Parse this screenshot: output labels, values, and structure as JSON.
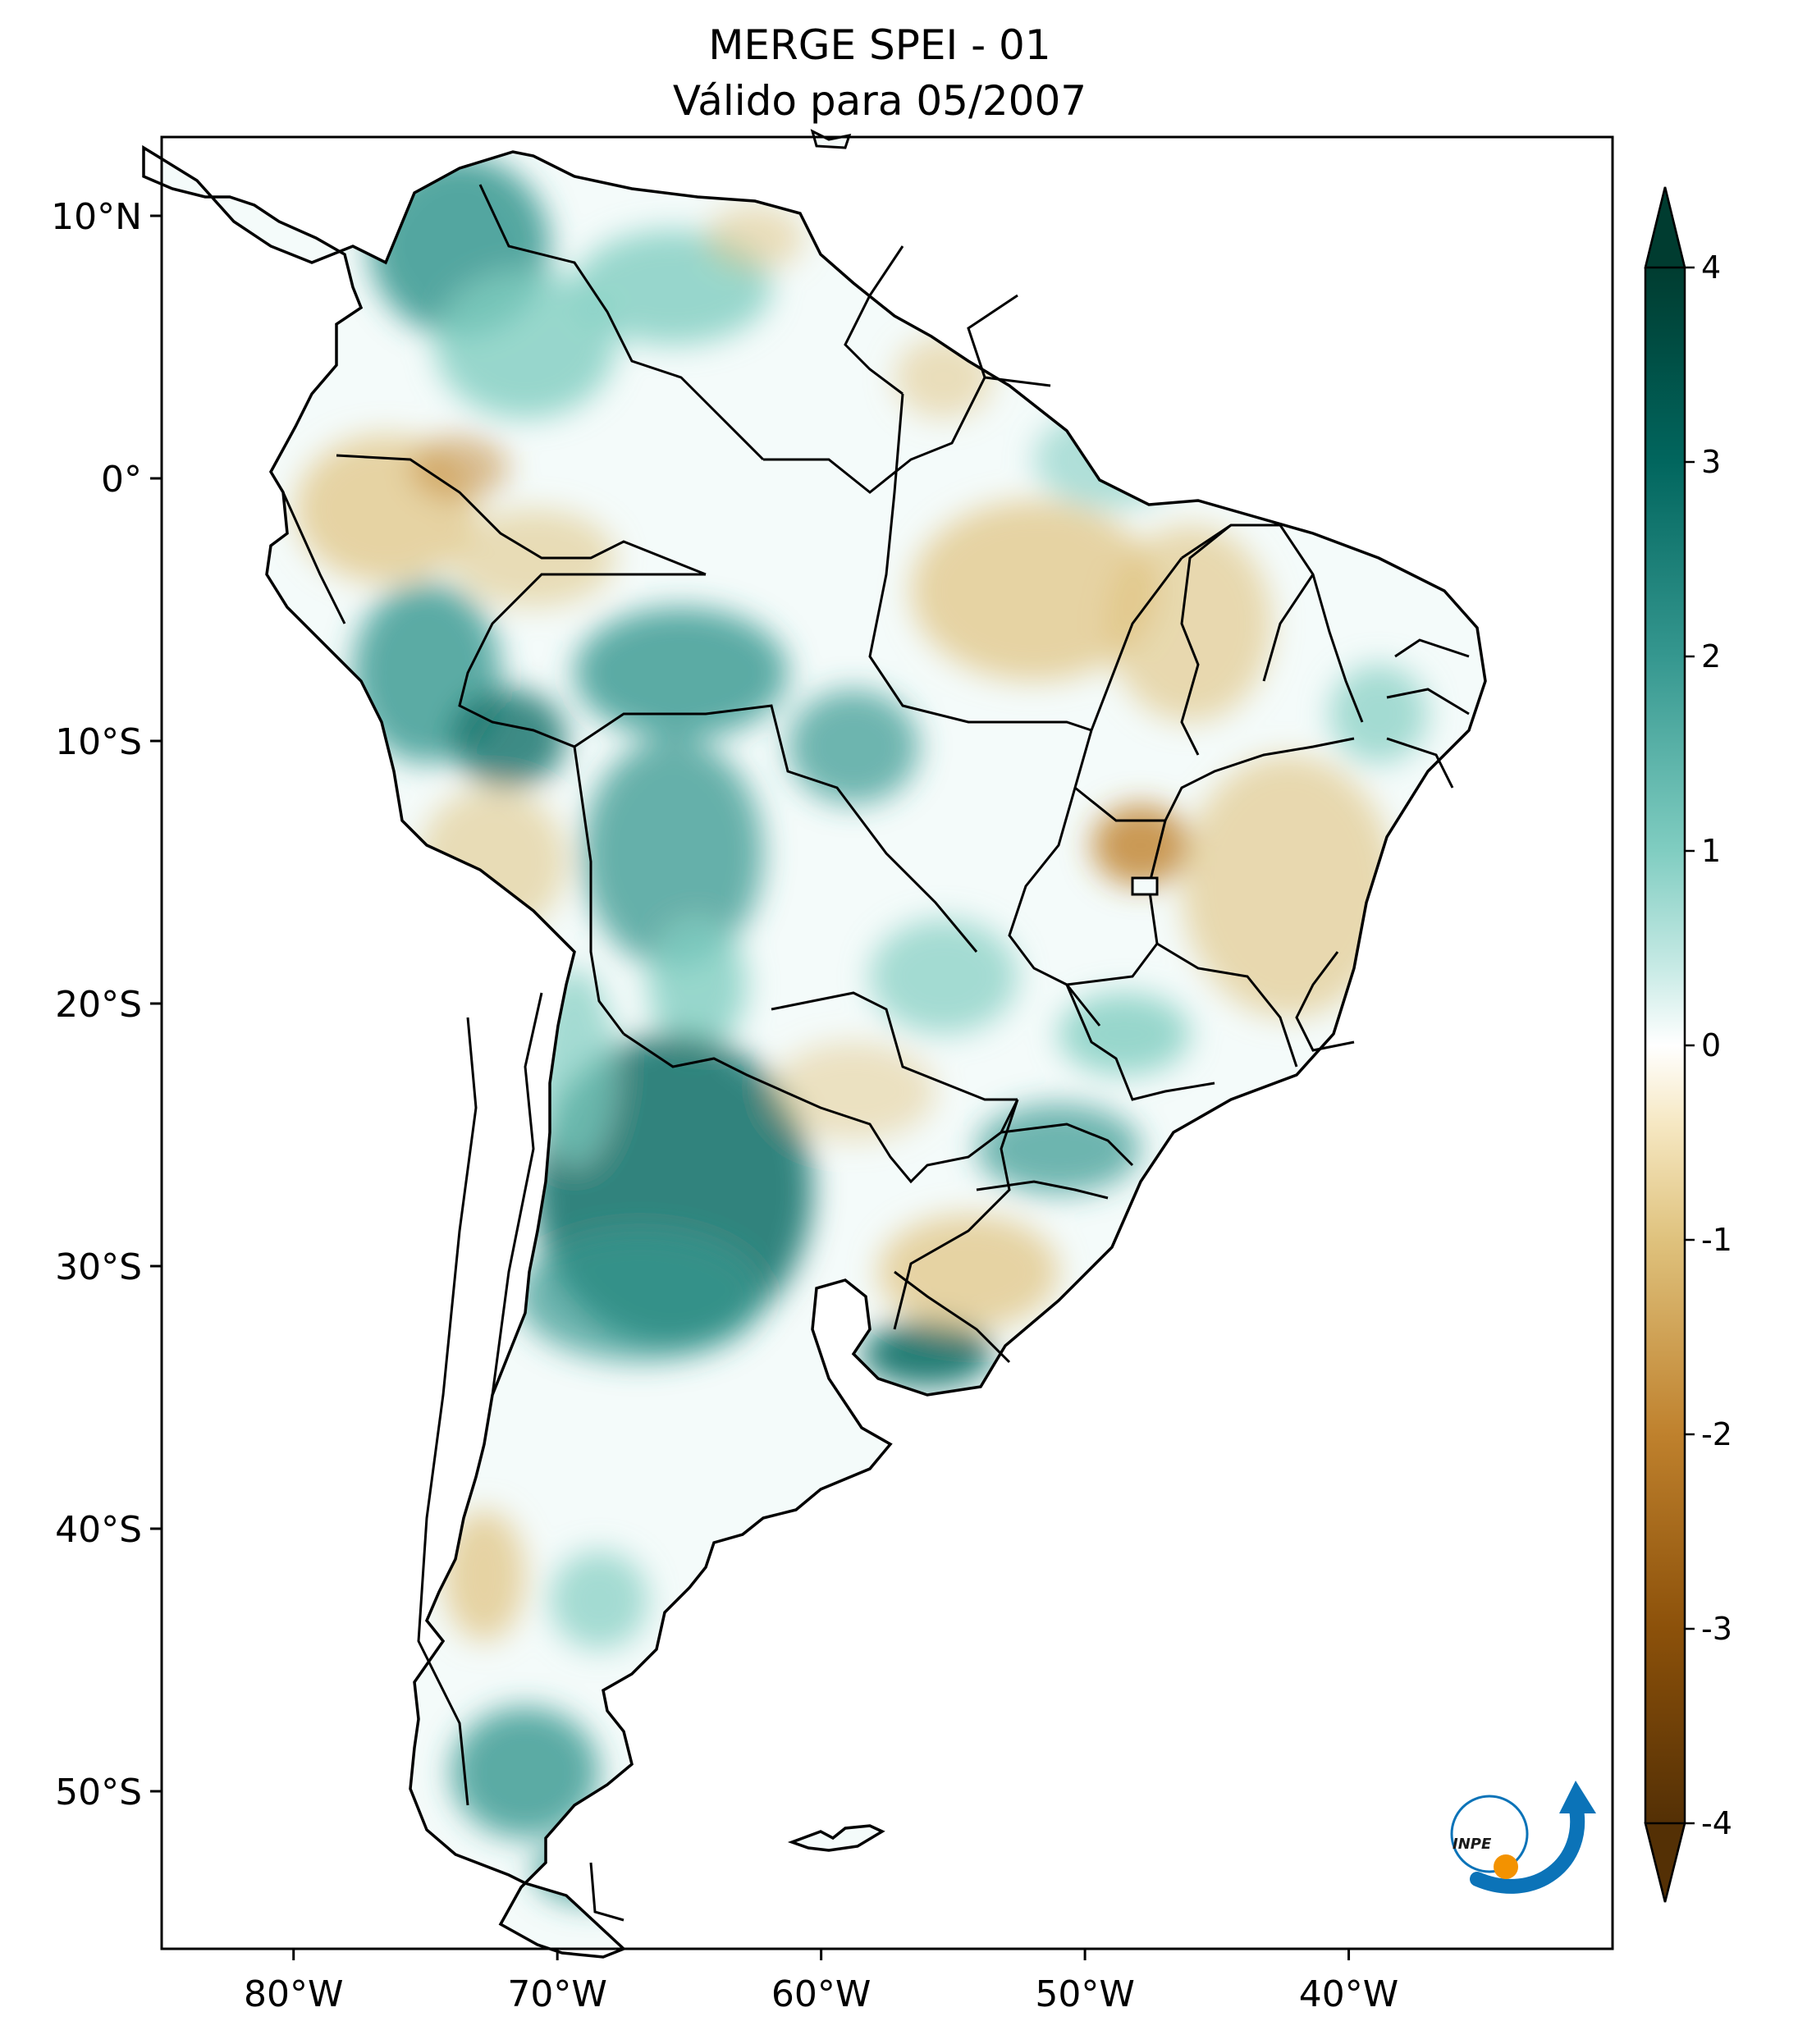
{
  "title": {
    "line1": "MERGE   SPEI - 01",
    "line2": "Válido para 05/2007"
  },
  "map": {
    "lon_range": [
      -85,
      -30
    ],
    "lat_range": [
      -56,
      13
    ],
    "lon_ticks": [
      {
        "value": -80,
        "label": "80°W"
      },
      {
        "value": -70,
        "label": "70°W"
      },
      {
        "value": -60,
        "label": "60°W"
      },
      {
        "value": -50,
        "label": "50°W"
      },
      {
        "value": -40,
        "label": "40°W"
      }
    ],
    "lat_ticks": [
      {
        "value": 10,
        "label": "10°N"
      },
      {
        "value": 0,
        "label": "0°"
      },
      {
        "value": -10,
        "label": "10°S"
      },
      {
        "value": -20,
        "label": "20°S"
      },
      {
        "value": -30,
        "label": "30°S"
      },
      {
        "value": -40,
        "label": "40°S"
      },
      {
        "value": -50,
        "label": "50°S"
      }
    ]
  },
  "colorbar": {
    "min": -4,
    "max": 4,
    "extend": "both",
    "ticks": [
      "4",
      "3",
      "2",
      "1",
      "0",
      "-1",
      "-2",
      "-3",
      "-4"
    ],
    "colors": {
      "very_wet": "#003c30",
      "wet": "#35978f",
      "moist": "#c7eae5",
      "neutral": "#ffffff",
      "dryish": "#f6e8c3",
      "dry": "#dfc27d",
      "very_dry": "#8c510a",
      "extreme_dry": "#543005"
    }
  },
  "logo": {
    "text": "INPE",
    "arrow_color": "#0b73b8",
    "dot_color": "#f39200"
  }
}
